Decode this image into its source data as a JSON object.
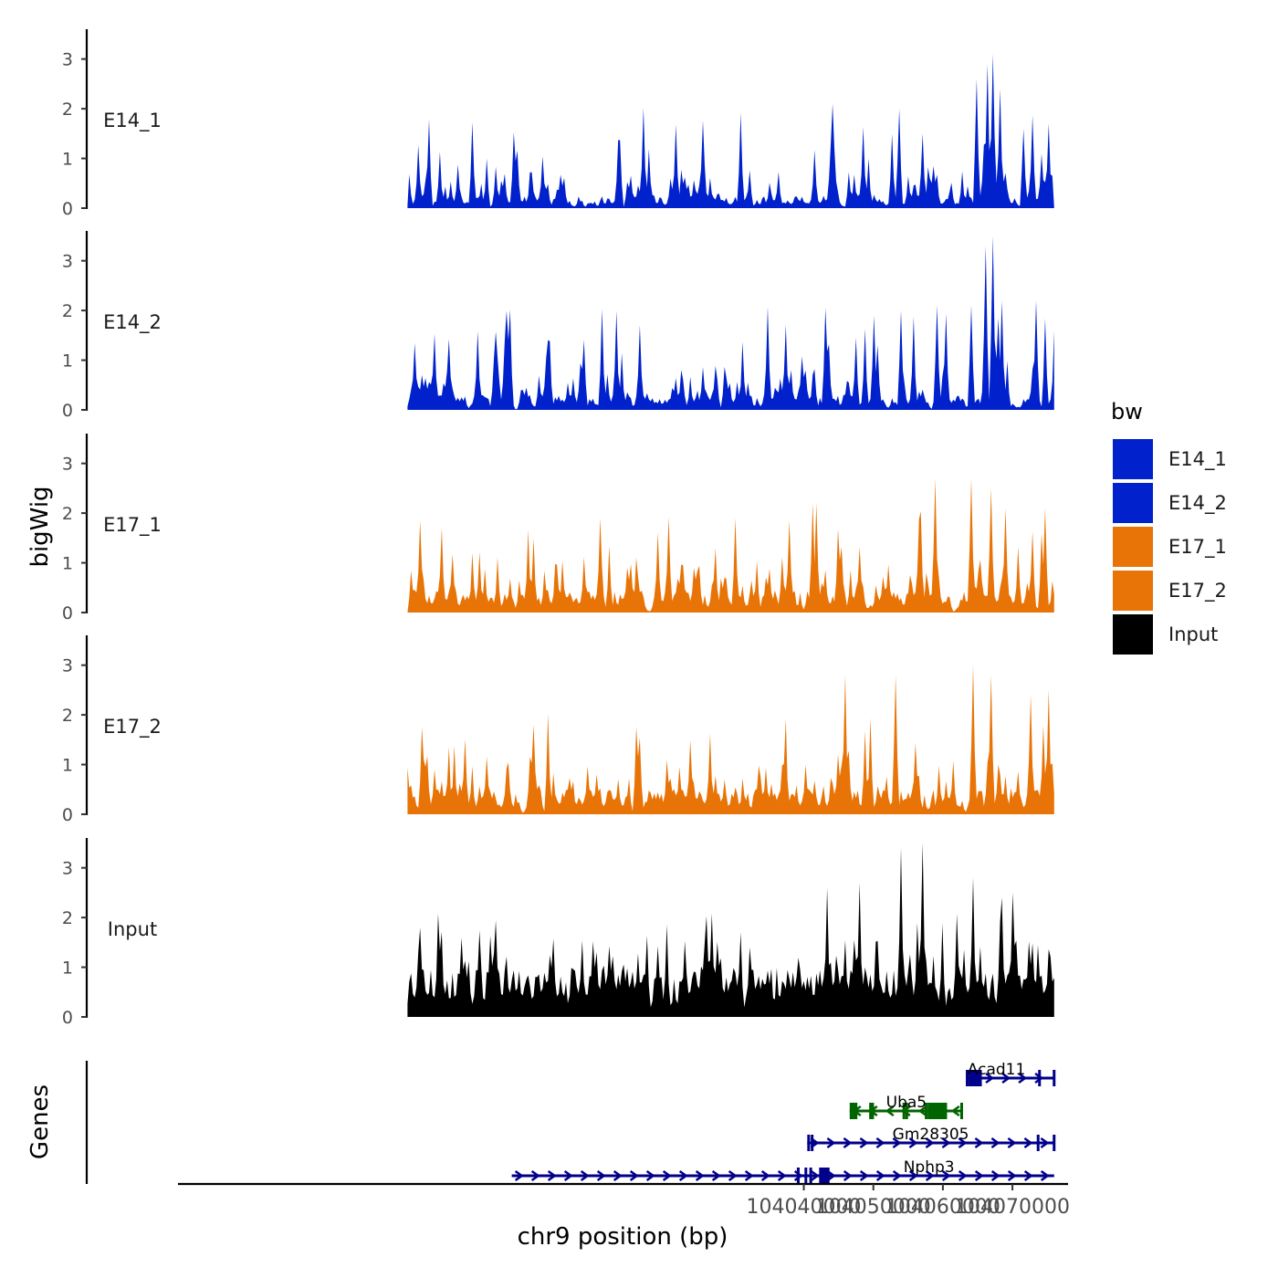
{
  "chart_data": {
    "type": "area",
    "title": "",
    "ylabel": "bigWig",
    "genes_label": "Genes",
    "xlabel": "chr9 position (bp)",
    "xlim": [
      103950000,
      104078000
    ],
    "ylim": [
      0,
      3.6
    ],
    "track_start": 103983000,
    "track_end": 104076000,
    "x_ticks": [
      {
        "value": 104040000,
        "label": "104040000"
      },
      {
        "value": 104050000,
        "label": "104050000"
      },
      {
        "value": 104060000,
        "label": "104060000"
      },
      {
        "value": 104070000,
        "label": "104070000"
      }
    ],
    "y_ticks": [
      {
        "value": 0,
        "label": "0"
      },
      {
        "value": 1,
        "label": "1"
      },
      {
        "value": 2,
        "label": "2"
      },
      {
        "value": 3,
        "label": "3"
      }
    ],
    "legend": {
      "title": "bw",
      "position": "right",
      "entries": [
        {
          "name": "E14_1",
          "color": "#0021CC"
        },
        {
          "name": "E14_2",
          "color": "#0021CC"
        },
        {
          "name": "E17_1",
          "color": "#E87407"
        },
        {
          "name": "E17_2",
          "color": "#E87407"
        },
        {
          "name": "Input",
          "color": "#000000"
        }
      ]
    },
    "series": [
      {
        "name": "E14_1",
        "color": "#0021CC",
        "seed": 11,
        "base": 0.25,
        "spike_rate": 0.09,
        "max": 3.15,
        "peaks": [
          [
            104043900,
            1.3
          ],
          [
            104053600,
            2.0
          ],
          [
            104057200,
            1.5
          ],
          [
            104064800,
            2.6
          ],
          [
            104066400,
            2.9
          ],
          [
            104067300,
            3.1
          ],
          [
            104068200,
            2.4
          ],
          [
            104071700,
            1.6
          ],
          [
            104075100,
            1.7
          ]
        ]
      },
      {
        "name": "E14_2",
        "color": "#0021CC",
        "seed": 23,
        "base": 0.3,
        "spike_rate": 0.1,
        "max": 3.55,
        "peaks": [
          [
            104050200,
            1.9
          ],
          [
            104053900,
            2.0
          ],
          [
            104059200,
            2.1
          ],
          [
            104064200,
            2.1
          ],
          [
            104066100,
            3.3
          ],
          [
            104067300,
            3.5
          ],
          [
            104068600,
            2.2
          ],
          [
            104073400,
            2.2
          ]
        ]
      },
      {
        "name": "E17_1",
        "color": "#E87407",
        "seed": 37,
        "base": 0.45,
        "spike_rate": 0.09,
        "max": 2.8,
        "peaks": [
          [
            104041400,
            2.2
          ],
          [
            104041900,
            2.2
          ],
          [
            104058800,
            2.7
          ],
          [
            104064100,
            2.7
          ],
          [
            104066900,
            2.5
          ],
          [
            104069000,
            2.1
          ],
          [
            104074700,
            2.1
          ]
        ]
      },
      {
        "name": "E17_2",
        "color": "#E87407",
        "seed": 53,
        "base": 0.5,
        "spike_rate": 0.1,
        "max": 3.0,
        "peaks": [
          [
            104045900,
            2.8
          ],
          [
            104053300,
            2.8
          ],
          [
            104064300,
            3.0
          ],
          [
            104066900,
            2.8
          ],
          [
            104072600,
            2.4
          ],
          [
            104075100,
            2.5
          ]
        ]
      },
      {
        "name": "Input",
        "color": "#000000",
        "seed": 71,
        "base": 1.0,
        "spike_rate": 0.12,
        "max": 3.55,
        "peaks": [
          [
            104043400,
            2.6
          ],
          [
            104048000,
            2.7
          ],
          [
            104054000,
            3.4
          ],
          [
            104057100,
            3.5
          ],
          [
            104064400,
            2.8
          ],
          [
            104068400,
            2.4
          ],
          [
            104070100,
            2.5
          ]
        ]
      }
    ],
    "genes": [
      {
        "name": "Acad11",
        "strand": "+",
        "color": "#00008B",
        "start": 104063300,
        "end": 104076000,
        "exons": [
          [
            104063300,
            104063500
          ],
          [
            104063700,
            104065600
          ],
          [
            104073700,
            104073800
          ],
          [
            104075800,
            104076000
          ]
        ]
      },
      {
        "name": "Uba5",
        "strand": "-",
        "color": "#006400",
        "start": 104046600,
        "end": 104062900,
        "exons": [
          [
            104046600,
            104047700
          ],
          [
            104049400,
            104049500
          ],
          [
            104049700,
            104049800
          ],
          [
            104054200,
            104054300
          ],
          [
            104054600,
            104054700
          ],
          [
            104057400,
            104057500
          ],
          [
            104057800,
            104060600
          ],
          [
            104062500,
            104062900
          ]
        ]
      },
      {
        "name": "Gm28305",
        "strand": "+",
        "color": "#00008B",
        "start": 104040500,
        "end": 104076000,
        "exons": [
          [
            104040500,
            104040600
          ],
          [
            104041000,
            104041100
          ],
          [
            104073500,
            104073600
          ],
          [
            104075800,
            104076000
          ]
        ]
      },
      {
        "name": "Nphp3",
        "strand": "+",
        "color": "#00008B",
        "start": 103998000,
        "end": 104076000,
        "exons": [
          [
            104039000,
            104039400
          ],
          [
            104040100,
            104040200
          ],
          [
            104040800,
            104040900
          ],
          [
            104042200,
            104043700
          ]
        ]
      }
    ]
  }
}
